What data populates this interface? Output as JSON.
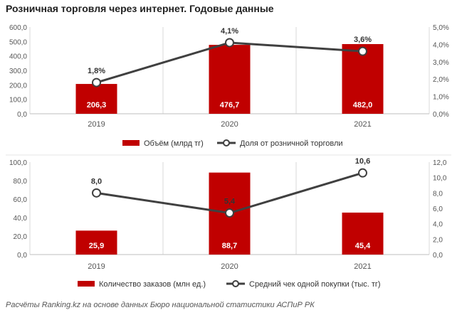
{
  "title": "Розничная торговля через интернет. Годовые данные",
  "source": "Расчёты Ranking.kz на основе данных Бюро национальной статистики АСПиР РК",
  "colors": {
    "bar": "#c00000",
    "line": "#404040",
    "grid": "#d9d9d9"
  },
  "chart_data": [
    {
      "type": "bar",
      "categories": [
        "2019",
        "2020",
        "2021"
      ],
      "series": [
        {
          "name": "Объём (млрд тг)",
          "kind": "bar",
          "axis": "left",
          "values": [
            206.3,
            476.7,
            482.0
          ],
          "labels": [
            "206,3",
            "476,7",
            "482,0"
          ]
        },
        {
          "name": "Доля от розничной торговли",
          "kind": "line",
          "axis": "right",
          "values": [
            1.8,
            4.1,
            3.6
          ],
          "labels": [
            "1,8%",
            "4,1%",
            "3,6%"
          ]
        }
      ],
      "ylim": [
        0,
        600
      ],
      "y_ticks": [
        "0,0",
        "100,0",
        "200,0",
        "300,0",
        "400,0",
        "500,0",
        "600,0"
      ],
      "y2lim": [
        0,
        5
      ],
      "y2_ticks": [
        "0,0%",
        "1,0%",
        "2,0%",
        "3,0%",
        "4,0%",
        "5,0%"
      ],
      "grid": "vertical",
      "legend": "bottom"
    },
    {
      "type": "bar",
      "categories": [
        "2019",
        "2020",
        "2021"
      ],
      "series": [
        {
          "name": "Количество заказов (млн ед.)",
          "kind": "bar",
          "axis": "left",
          "values": [
            25.9,
            88.7,
            45.4
          ],
          "labels": [
            "25,9",
            "88,7",
            "45,4"
          ]
        },
        {
          "name": "Средний чек одной покупки (тыс. тг)",
          "kind": "line",
          "axis": "right",
          "values": [
            8.0,
            5.4,
            10.6
          ],
          "labels": [
            "8,0",
            "5,4",
            "10,6"
          ]
        }
      ],
      "ylim": [
        0,
        100
      ],
      "y_ticks": [
        "0,0",
        "20,0",
        "40,0",
        "60,0",
        "80,0",
        "100,0"
      ],
      "y2lim": [
        0,
        12
      ],
      "y2_ticks": [
        "0,0",
        "2,0",
        "4,0",
        "6,0",
        "8,0",
        "10,0",
        "12,0"
      ],
      "grid": "vertical",
      "legend": "bottom"
    }
  ]
}
